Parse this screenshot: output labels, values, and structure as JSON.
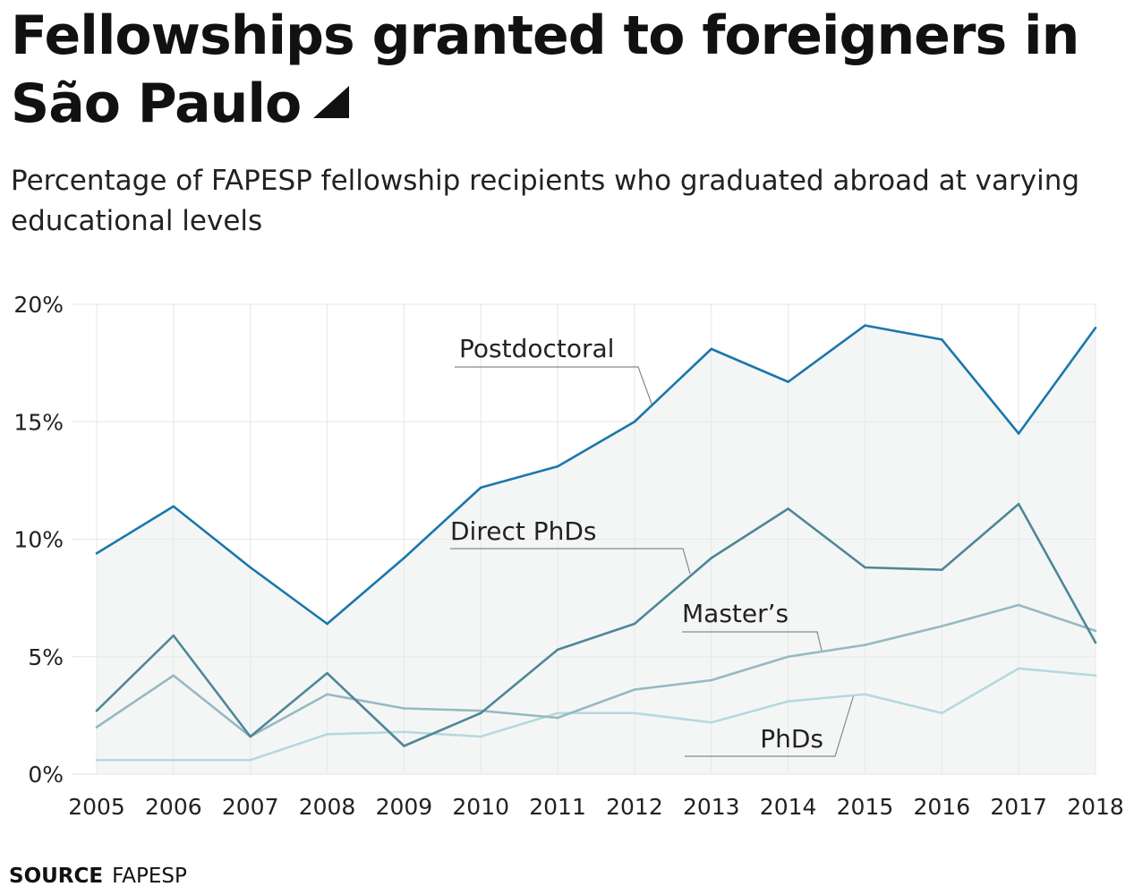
{
  "title": "Fellowships granted to foreigners in São Paulo",
  "title_icon": "triangle-corner-icon",
  "subtitle": "Percentage of FAPESP fellowship recipients who graduated abroad at varying educational levels",
  "source": {
    "label": "SOURCE",
    "value": "FAPESP"
  },
  "colors": {
    "Postdoctoral": "#1b77ab",
    "Direct PhDs": "#4f8797",
    "Master’s": "#96b9c1",
    "PhDs": "#b5d9de",
    "area_fill": "#f4f6f6",
    "grid": "#e9eaea",
    "leader": "#888888"
  },
  "chart_data": {
    "type": "line",
    "x": [
      2005,
      2006,
      2007,
      2008,
      2009,
      2010,
      2011,
      2012,
      2013,
      2014,
      2015,
      2016,
      2017,
      2018
    ],
    "ylim": [
      0,
      20
    ],
    "yticks": [
      0,
      5,
      10,
      15,
      20
    ],
    "ytick_labels": [
      "0%",
      "5%",
      "10%",
      "15%",
      "20%"
    ],
    "xlabel": "",
    "ylabel": "",
    "grid": true,
    "legend": "inline labels",
    "area_under": "Postdoctoral",
    "series": [
      {
        "name": "Postdoctoral",
        "values": [
          9.4,
          11.4,
          8.8,
          6.4,
          9.2,
          12.2,
          13.1,
          15.0,
          18.1,
          16.7,
          19.1,
          18.5,
          14.5,
          19.0
        ]
      },
      {
        "name": "Direct PhDs",
        "values": [
          2.7,
          5.9,
          1.6,
          4.3,
          1.2,
          2.6,
          5.3,
          6.4,
          9.2,
          11.3,
          8.8,
          8.7,
          11.5,
          5.6
        ]
      },
      {
        "name": "Master’s",
        "values": [
          2.0,
          4.2,
          1.6,
          3.4,
          2.8,
          2.7,
          2.4,
          3.6,
          4.0,
          5.0,
          5.5,
          6.3,
          7.2,
          6.1
        ]
      },
      {
        "name": "PhDs",
        "values": [
          0.6,
          0.6,
          0.6,
          1.7,
          1.8,
          1.6,
          2.6,
          2.6,
          2.2,
          3.1,
          3.4,
          2.6,
          4.5,
          4.2
        ]
      }
    ]
  }
}
